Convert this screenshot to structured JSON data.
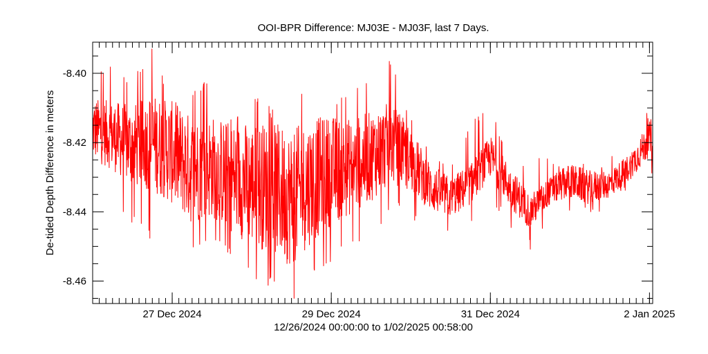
{
  "chart_data": {
    "type": "line",
    "title": "OOI-BPR Difference: MJ03E - MJ03F, last 7 Days.",
    "ylabel": "De-tided Depth Difference in meters",
    "xlabel": "12/26/2024 00:00:00 to  1/02/2025 00:58:00",
    "x_range": [
      "2024-12-26 00:00",
      "2025-01-02 00:58"
    ],
    "ylim": [
      -8.4665,
      -8.391
    ],
    "y_ticks": [
      {
        "value": -8.4,
        "label": "-8.40"
      },
      {
        "value": -8.42,
        "label": "-8.42"
      },
      {
        "value": -8.44,
        "label": "-8.44"
      },
      {
        "value": -8.46,
        "label": "-8.46"
      }
    ],
    "x_ticks": [
      {
        "date": "2024-12-27",
        "label": "27 Dec 2024"
      },
      {
        "date": "2024-12-29",
        "label": "29 Dec 2024"
      },
      {
        "date": "2024-12-31",
        "label": "31 Dec 2024"
      },
      {
        "date": "2025-01-02",
        "label": "2 Jan 2025"
      }
    ],
    "series": [
      {
        "color": "#ff0000",
        "x": [
          "2024-12-26 00:00",
          "2024-12-26 06:00",
          "2024-12-26 12:00",
          "2024-12-26 18:00",
          "2024-12-27 00:00",
          "2024-12-27 06:00",
          "2024-12-27 12:00",
          "2024-12-27 18:00",
          "2024-12-28 00:00",
          "2024-12-28 06:00",
          "2024-12-28 12:00",
          "2024-12-28 18:00",
          "2024-12-29 00:00",
          "2024-12-29 06:00",
          "2024-12-29 12:00",
          "2024-12-29 18:00",
          "2024-12-30 00:00",
          "2024-12-30 06:00",
          "2024-12-30 12:00",
          "2024-12-30 18:00",
          "2024-12-31 00:00",
          "2024-12-31 06:00",
          "2024-12-31 12:00",
          "2024-12-31 18:00",
          "2025-01-01 00:00",
          "2025-01-01 06:00",
          "2025-01-01 12:00",
          "2025-01-01 18:00",
          "2025-01-02 00:00",
          "2025-01-02 00:58"
        ],
        "mean": [
          -8.416,
          -8.418,
          -8.421,
          -8.42,
          -8.423,
          -8.428,
          -8.427,
          -8.43,
          -8.432,
          -8.433,
          -8.436,
          -8.431,
          -8.428,
          -8.427,
          -8.424,
          -8.42,
          -8.425,
          -8.433,
          -8.436,
          -8.432,
          -8.424,
          -8.433,
          -8.44,
          -8.434,
          -8.431,
          -8.433,
          -8.432,
          -8.427,
          -8.419,
          -8.418
        ],
        "high": [
          -8.4,
          -8.397,
          -8.402,
          -8.391,
          -8.408,
          -8.405,
          -8.401,
          -8.412,
          -8.405,
          -8.41,
          -8.409,
          -8.402,
          -8.408,
          -8.404,
          -8.4,
          -8.396,
          -8.412,
          -8.421,
          -8.425,
          -8.413,
          -8.41,
          -8.424,
          -8.424,
          -8.424,
          -8.426,
          -8.425,
          -8.424,
          -8.415,
          -8.41,
          -8.405
        ],
        "low": [
          -8.43,
          -8.438,
          -8.444,
          -8.449,
          -8.452,
          -8.452,
          -8.45,
          -8.453,
          -8.459,
          -8.462,
          -8.467,
          -8.459,
          -8.457,
          -8.449,
          -8.448,
          -8.44,
          -8.441,
          -8.449,
          -8.446,
          -8.444,
          -8.436,
          -8.445,
          -8.451,
          -8.444,
          -8.441,
          -8.442,
          -8.438,
          -8.433,
          -8.428,
          -8.431
        ],
        "spread": [
          0.009,
          0.01,
          0.012,
          0.014,
          0.015,
          0.016,
          0.015,
          0.016,
          0.018,
          0.019,
          0.02,
          0.018,
          0.016,
          0.014,
          0.013,
          0.012,
          0.009,
          0.007,
          0.006,
          0.006,
          0.006,
          0.006,
          0.005,
          0.004,
          0.005,
          0.005,
          0.004,
          0.004,
          0.005,
          0.006
        ]
      }
    ]
  }
}
